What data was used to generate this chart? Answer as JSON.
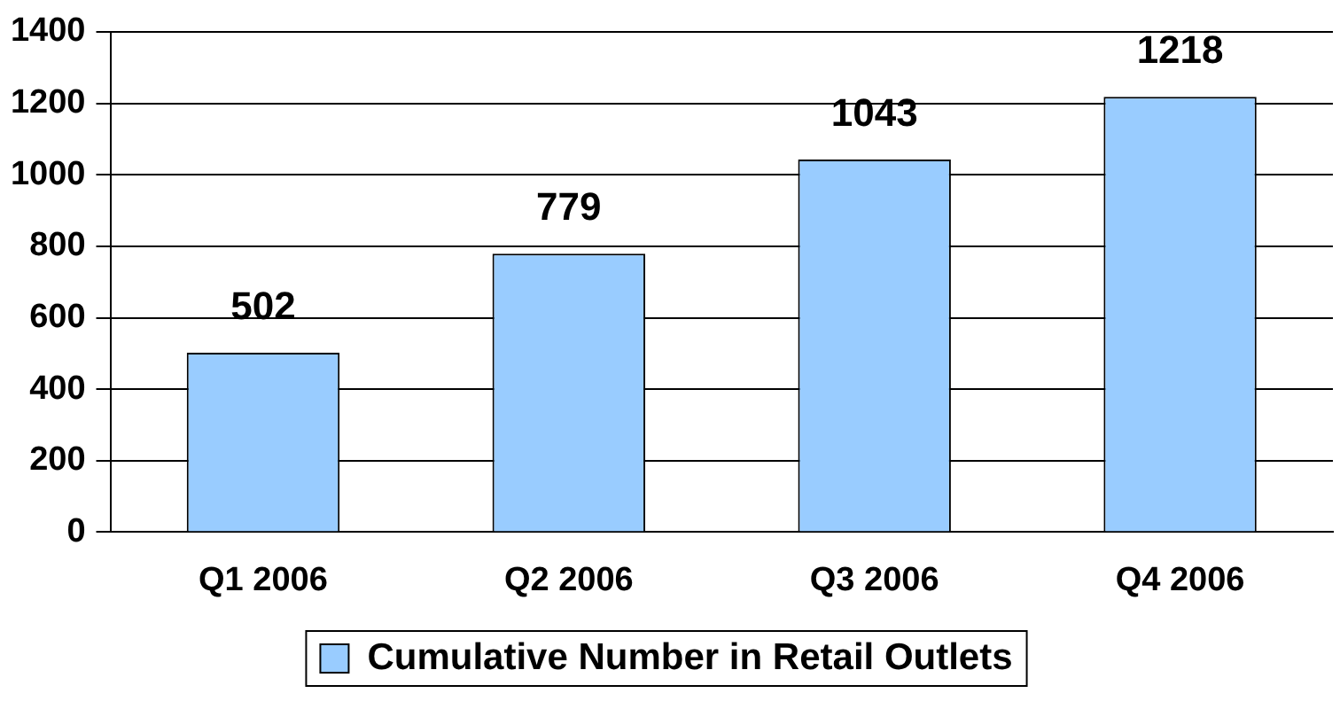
{
  "chart_data": {
    "type": "bar",
    "categories": [
      "Q1 2006",
      "Q2 2006",
      "Q3 2006",
      "Q4 2006"
    ],
    "series": [
      {
        "name": "Cumulative Number in Retail Outlets",
        "color": "#99ccff",
        "values": [
          502,
          779,
          1043,
          1218
        ]
      }
    ],
    "ylim": [
      0,
      1400
    ],
    "yticks": [
      0,
      200,
      400,
      600,
      800,
      1000,
      1200,
      1400
    ],
    "grid": "y",
    "legend": "bottom",
    "data_labels": true
  }
}
